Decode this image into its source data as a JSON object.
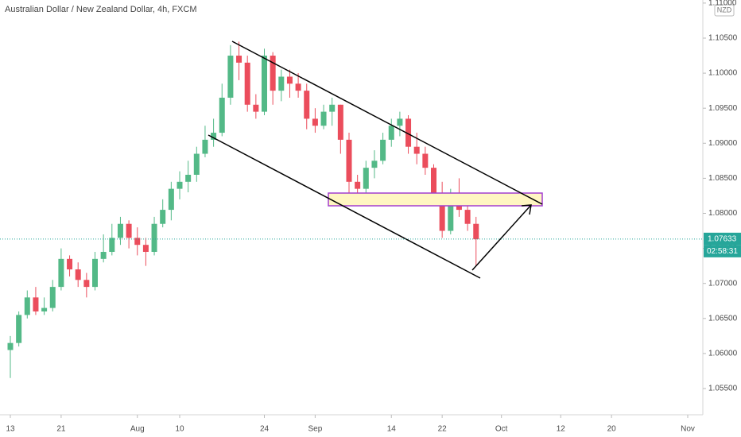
{
  "chart_data": {
    "type": "candlestick",
    "title": "Australian Dollar / New Zealand Dollar, 4h, FXCM",
    "currency": "NZD",
    "up_color": "#53b987",
    "down_color": "#eb4d5c",
    "categories": [
      "13",
      null,
      null,
      null,
      null,
      null,
      "21",
      null,
      null,
      null,
      null,
      null,
      null,
      null,
      null,
      "Aug",
      null,
      null,
      null,
      null,
      "10",
      null,
      null,
      null,
      null,
      null,
      null,
      null,
      null,
      null,
      "24",
      null,
      null,
      null,
      null,
      null,
      "Sep",
      null,
      null,
      null,
      null,
      null,
      null,
      null,
      null,
      "14",
      null,
      null,
      null,
      null,
      null,
      "22",
      null,
      null,
      null,
      null,
      null,
      null,
      "Oct",
      null,
      null,
      null,
      null,
      null,
      null,
      "12",
      null,
      null,
      null,
      null,
      null,
      "20",
      null,
      null,
      null,
      null,
      null,
      null,
      null,
      null,
      "Nov",
      null
    ],
    "open": [
      1.0605,
      1.0615,
      1.0655,
      1.068,
      1.066,
      1.0665,
      1.0695,
      1.0735,
      1.072,
      1.0705,
      1.0695,
      1.0735,
      1.0745,
      1.0765,
      1.0785,
      1.0765,
      1.0755,
      1.0745,
      1.0785,
      1.0805,
      1.0835,
      1.0845,
      1.0855,
      1.0885,
      1.0905,
      1.0915,
      1.0965,
      1.1025,
      1.1015,
      1.0955,
      1.0945,
      1.1025,
      1.0975,
      1.0995,
      1.0985,
      1.0975,
      1.0935,
      1.0925,
      1.0945,
      1.0955,
      1.0905,
      1.0845,
      1.0835,
      1.0865,
      1.0875,
      1.0905,
      1.0925,
      1.0935,
      1.0895,
      1.0885,
      1.0865,
      1.0825,
      1.0775,
      1.0825,
      1.0805,
      1.0785,
      null,
      null,
      null,
      null,
      null,
      null,
      null,
      null,
      null,
      null,
      null,
      null,
      null,
      null,
      null,
      null,
      null,
      null,
      null,
      null,
      null,
      null,
      null,
      null,
      null,
      null
    ],
    "high": [
      1.0625,
      1.066,
      1.069,
      1.0695,
      1.068,
      1.0705,
      1.075,
      1.074,
      1.073,
      1.0715,
      1.0745,
      1.077,
      1.0785,
      1.0795,
      1.079,
      1.078,
      1.0765,
      1.0795,
      1.082,
      1.0845,
      1.086,
      1.0875,
      1.0895,
      1.0925,
      1.0935,
      1.0985,
      1.104,
      1.1045,
      1.1025,
      1.097,
      1.1035,
      1.103,
      1.1005,
      1.1005,
      1.1,
      1.0985,
      1.095,
      1.0955,
      1.0965,
      1.0955,
      1.0915,
      1.0855,
      1.0875,
      1.089,
      1.0915,
      1.0935,
      1.0945,
      1.094,
      1.0915,
      1.0895,
      1.087,
      1.0845,
      1.0835,
      1.085,
      1.0825,
      1.0795,
      null,
      null,
      null,
      null,
      null,
      null,
      null,
      null,
      null,
      null,
      null,
      null,
      null,
      null,
      null,
      null,
      null,
      null,
      null,
      null,
      null,
      null,
      null,
      null,
      null,
      null
    ],
    "low": [
      1.0565,
      1.061,
      1.065,
      1.0655,
      1.0655,
      1.066,
      1.069,
      1.071,
      1.0695,
      1.068,
      1.069,
      1.073,
      1.074,
      1.0755,
      1.075,
      1.074,
      1.0725,
      1.074,
      1.078,
      1.079,
      1.082,
      1.083,
      1.0845,
      1.088,
      1.0895,
      1.091,
      1.0955,
      1.099,
      1.0945,
      1.0935,
      1.094,
      1.0955,
      1.096,
      1.0965,
      1.0965,
      1.092,
      1.0915,
      1.092,
      1.0925,
      1.0885,
      1.0825,
      1.082,
      1.0825,
      1.085,
      1.087,
      1.0895,
      1.091,
      1.0885,
      1.087,
      1.0855,
      1.0815,
      1.0765,
      1.077,
      1.0795,
      1.0775,
      1.0725,
      null,
      null,
      null,
      null,
      null,
      null,
      null,
      null,
      null,
      null,
      null,
      null,
      null,
      null,
      null,
      null,
      null,
      null,
      null,
      null,
      null,
      null,
      null,
      null,
      null,
      null
    ],
    "close": [
      1.0615,
      1.0655,
      1.068,
      1.066,
      1.0665,
      1.0695,
      1.0735,
      1.072,
      1.0705,
      1.0695,
      1.0735,
      1.0745,
      1.0765,
      1.0785,
      1.0765,
      1.0755,
      1.0745,
      1.0785,
      1.0805,
      1.0835,
      1.0845,
      1.0855,
      1.0885,
      1.0905,
      1.0915,
      1.0965,
      1.1025,
      1.1015,
      1.0955,
      1.0945,
      1.1025,
      1.0975,
      1.0995,
      1.0985,
      1.0975,
      1.0935,
      1.0925,
      1.0945,
      1.0955,
      1.0905,
      1.0845,
      1.0835,
      1.0865,
      1.0875,
      1.0905,
      1.0925,
      1.0935,
      1.0895,
      1.0885,
      1.0865,
      1.0825,
      1.0775,
      1.0825,
      1.0805,
      1.0785,
      1.0763,
      null,
      null,
      null,
      null,
      null,
      null,
      null,
      null,
      null,
      null,
      null,
      null,
      null,
      null,
      null,
      null,
      null,
      null,
      null,
      null,
      null,
      null,
      null,
      null,
      null,
      null
    ],
    "ylim": [
      1.05126,
      1.11044
    ],
    "yticks": [
      {
        "value": 1.055,
        "label": "1.05500"
      },
      {
        "value": 1.06,
        "label": "1.06000"
      },
      {
        "value": 1.065,
        "label": "1.06500"
      },
      {
        "value": 1.07,
        "label": "1.07000"
      },
      {
        "value": 1.075,
        "label": "1.07500"
      },
      {
        "value": 1.08,
        "label": "1.08000"
      },
      {
        "value": 1.085,
        "label": "1.08500"
      },
      {
        "value": 1.09,
        "label": "1.09000"
      },
      {
        "value": 1.095,
        "label": "1.09500"
      },
      {
        "value": 1.1,
        "label": "1.10000"
      },
      {
        "value": 1.105,
        "label": "1.10500"
      },
      {
        "value": 1.11,
        "label": "1.11000"
      }
    ],
    "last_price": 1.07633,
    "countdown": "02:58:31",
    "last_price_color": "#26a69a"
  }
}
